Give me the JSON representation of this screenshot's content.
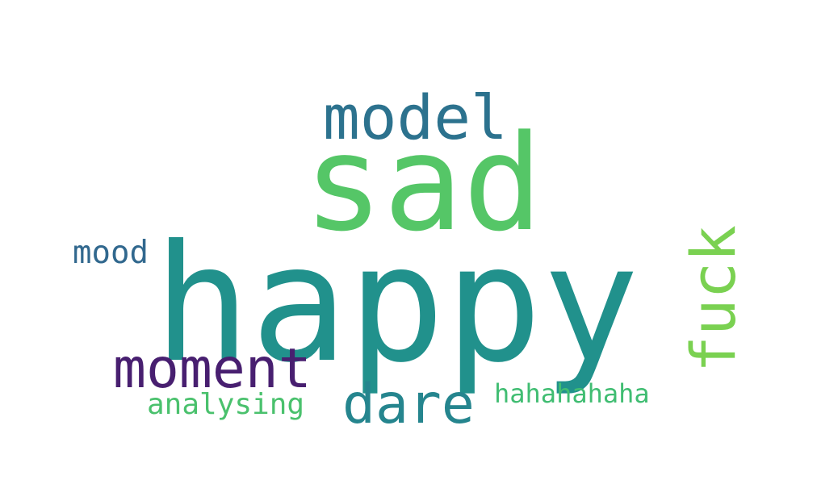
{
  "word_cloud": {
    "words": [
      {
        "text": "happy",
        "color": "#21918c"
      },
      {
        "text": "sad",
        "color": "#55c667"
      },
      {
        "text": "model",
        "color": "#2c728e"
      },
      {
        "text": "moment",
        "color": "#481f70"
      },
      {
        "text": "dare",
        "color": "#25858e"
      },
      {
        "text": "fuck",
        "color": "#7ad151"
      },
      {
        "text": "mood",
        "color": "#31688e"
      },
      {
        "text": "analysing",
        "color": "#4ac16d"
      },
      {
        "text": "hahahahaha",
        "color": "#40bd72"
      }
    ]
  }
}
